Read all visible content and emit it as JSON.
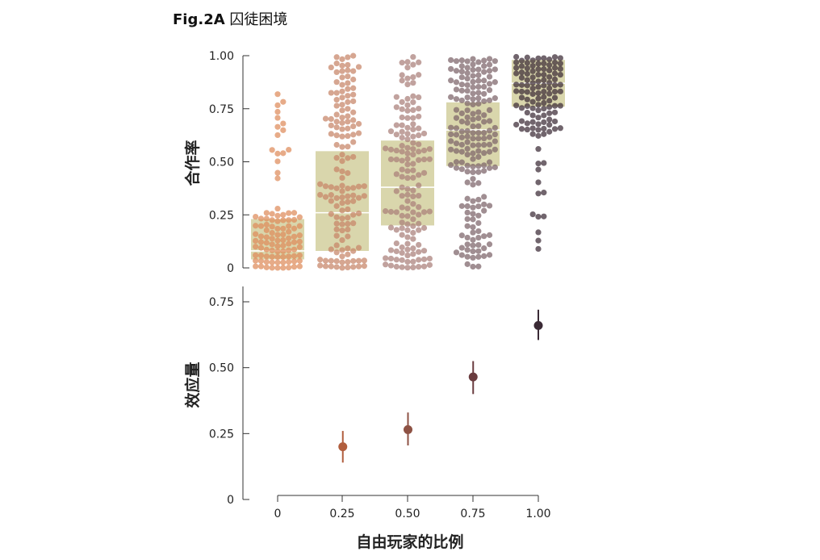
{
  "figure": {
    "label": "Fig.2A",
    "title": "囚徒困境"
  },
  "colors": {
    "box": "#d9d6ac",
    "median": "#ffffff",
    "groups": [
      "#de8a5a",
      "#c68466",
      "#a97e78",
      "#7c6368",
      "#3a2a35"
    ],
    "axis": "#333333"
  },
  "chart_data": [
    {
      "type": "scatter",
      "subtype": "beeswarm-with-box",
      "ylabel": "合作率",
      "ylim": [
        0,
        1
      ],
      "yticks": [
        "0",
        "0.25",
        "0.50",
        "0.75",
        "1.00"
      ],
      "categories": [
        "0",
        "0.25",
        "0.50",
        "0.75",
        "1.00"
      ],
      "boxes": [
        {
          "q1": 0.04,
          "median": 0.08,
          "q3": 0.23
        },
        {
          "q1": 0.08,
          "median": 0.26,
          "q3": 0.55
        },
        {
          "q1": 0.2,
          "median": 0.38,
          "q3": 0.6
        },
        {
          "q1": 0.48,
          "median": 0.65,
          "q3": 0.78
        },
        {
          "q1": 0.76,
          "median": 0.87,
          "q3": 0.98
        }
      ]
    },
    {
      "type": "scatter",
      "subtype": "point-with-error-bars",
      "xlabel": "自由玩家的比例",
      "ylabel": "效应量",
      "ylim": [
        0,
        0.8
      ],
      "yticks": [
        "0",
        "0.25",
        "0.50",
        "0.75"
      ],
      "xticks": [
        "0",
        "0.25",
        "0.50",
        "0.75",
        "1.00"
      ],
      "points": [
        {
          "x": 0.25,
          "y": 0.2,
          "low": 0.14,
          "high": 0.26
        },
        {
          "x": 0.5,
          "y": 0.265,
          "low": 0.205,
          "high": 0.33
        },
        {
          "x": 0.75,
          "y": 0.465,
          "low": 0.4,
          "high": 0.525
        },
        {
          "x": 1.0,
          "y": 0.66,
          "low": 0.605,
          "high": 0.72
        }
      ]
    }
  ]
}
